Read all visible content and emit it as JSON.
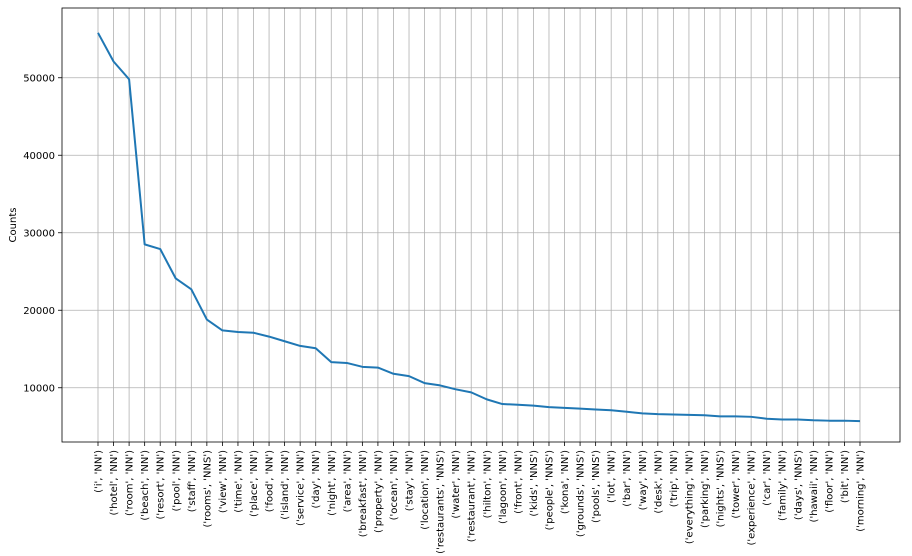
{
  "chart_data": {
    "type": "line",
    "title": "",
    "xlabel": "",
    "ylabel": "Counts",
    "ylim": [
      3000,
      59000
    ],
    "yticks": [
      10000,
      20000,
      30000,
      40000,
      50000
    ],
    "grid": true,
    "line_color": "#1f77b4",
    "categories": [
      "('i', 'NN')",
      "('hotel', 'NN')",
      "('room', 'NN')",
      "('beach', 'NN')",
      "('resort', 'NN')",
      "('pool', 'NN')",
      "('staff', 'NN')",
      "('rooms', 'NNS')",
      "('view', 'NN')",
      "('time', 'NN')",
      "('place', 'NN')",
      "('food', 'NN')",
      "('island', 'NN')",
      "('service', 'NN')",
      "('day', 'NN')",
      "('night', 'NN')",
      "('area', 'NN')",
      "('breakfast', 'NN')",
      "('property', 'NN')",
      "('ocean', 'NN')",
      "('stay', 'NN')",
      "('location', 'NN')",
      "('restaurants', 'NNS')",
      "('water', 'NN')",
      "('restaurant', 'NN')",
      "('hilton', 'NN')",
      "('lagoon', 'NN')",
      "('front', 'NN')",
      "('kids', 'NNS')",
      "('people', 'NNS')",
      "('kona', 'NN')",
      "('grounds', 'NNS')",
      "('pools', 'NNS')",
      "('lot', 'NN')",
      "('bar', 'NN')",
      "('way', 'NN')",
      "('desk', 'NN')",
      "('trip', 'NN')",
      "('everything', 'NN')",
      "('parking', 'NN')",
      "('nights', 'NNS')",
      "('tower', 'NN')",
      "('experience', 'NN')",
      "('car', 'NN')",
      "('family', 'NN')",
      "('days', 'NNS')",
      "('hawaii', 'NN')",
      "('floor', 'NN')",
      "('bit', 'NN')",
      "('morning', 'NN')"
    ],
    "values": [
      55800,
      52100,
      49800,
      28500,
      27900,
      24100,
      22700,
      18800,
      17400,
      17200,
      17100,
      16600,
      16000,
      15400,
      15100,
      13300,
      13200,
      12700,
      12600,
      11800,
      11500,
      10600,
      10300,
      9800,
      9400,
      8500,
      7900,
      7800,
      7700,
      7500,
      7400,
      7300,
      7200,
      7100,
      6900,
      6700,
      6600,
      6550,
      6500,
      6450,
      6300,
      6300,
      6250,
      6000,
      5900,
      5900,
      5800,
      5750,
      5750,
      5700
    ]
  }
}
